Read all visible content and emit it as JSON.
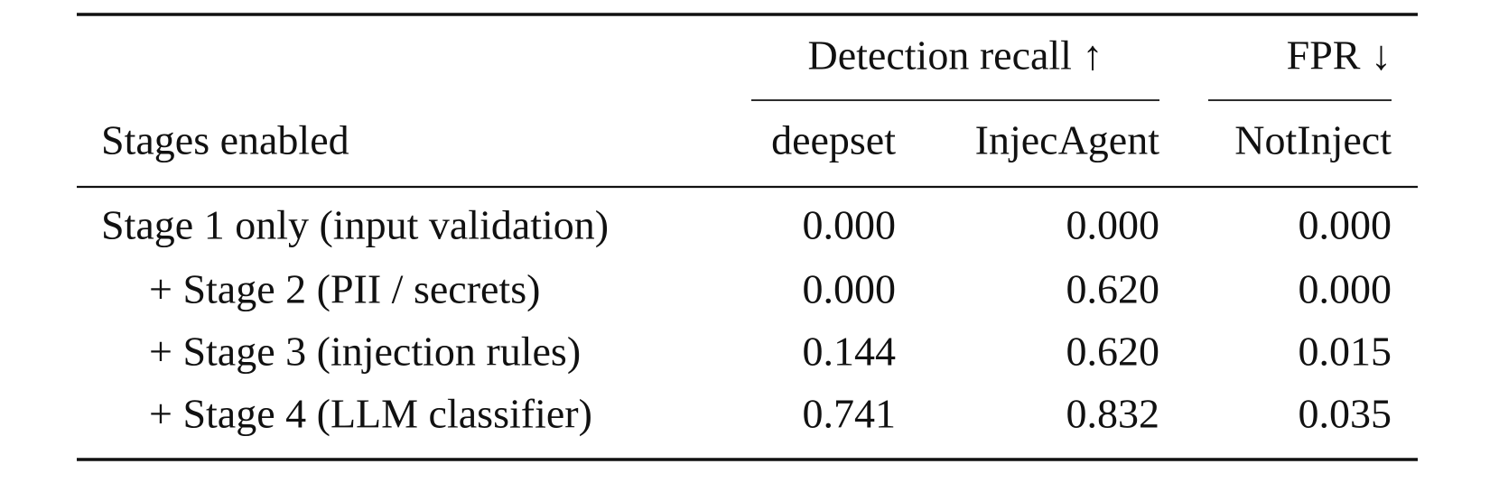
{
  "table": {
    "group_headers": [
      "Detection recall ↑",
      "FPR ↓"
    ],
    "columns": [
      "Stages enabled",
      "deepset",
      "InjecAgent",
      "NotInject"
    ],
    "rows": [
      [
        "Stage 1 only (input validation)",
        "0.000",
        "0.000",
        "0.000"
      ],
      [
        "+ Stage 2 (PII / secrets)",
        "0.000",
        "0.620",
        "0.000"
      ],
      [
        "+ Stage 3 (injection rules)",
        "0.144",
        "0.620",
        "0.015"
      ],
      [
        "+ Stage 4 (LLM classifier)",
        "0.741",
        "0.832",
        "0.035"
      ]
    ]
  }
}
